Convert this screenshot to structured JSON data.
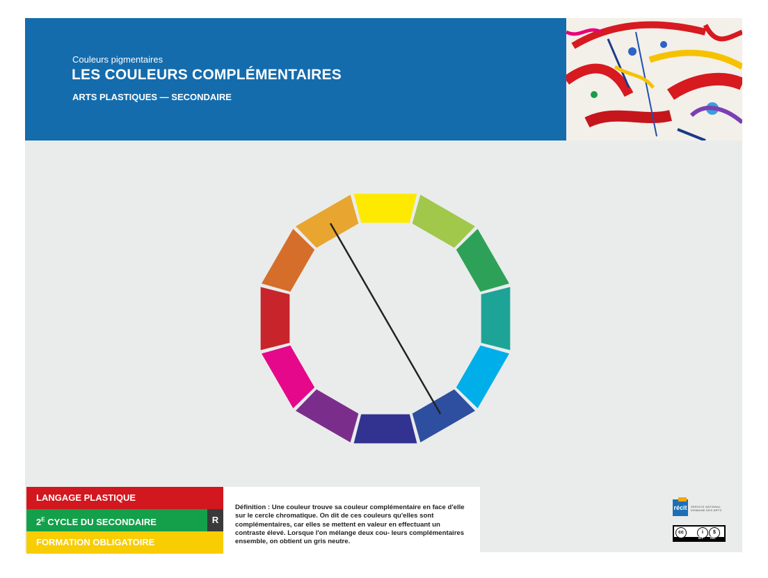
{
  "header": {
    "subtitle": "Couleurs pigmentaires",
    "title": "LES COULEURS COMPLÉMENTAIRES",
    "discipline": "ARTS PLASTIQUES — SECONDAIRE",
    "background": "#146cad"
  },
  "color_wheel": {
    "segments": [
      "#fdea00",
      "#a1c74b",
      "#2ea158",
      "#1da497",
      "#00aeea",
      "#2e4f9f",
      "#323290",
      "#7b2d8c",
      "#e5088a",
      "#c8242c",
      "#d66e2b",
      "#e8a52f"
    ],
    "connected_pair": [
      "#e8a52f",
      "#2e4f9f"
    ],
    "connector_color": "#222222"
  },
  "tags": {
    "language": "LANGAGE PLASTIQUE",
    "cycle_prefix": "2",
    "cycle_suffix": "E",
    "cycle_rest": " CYCLE DU SECONDAIRE",
    "cycle_badge": "R",
    "formation": "FORMATION OBLIGATOIRE"
  },
  "definition": {
    "text": "Définition : Une couleur trouve sa couleur complémentaire en face d'elle sur le cercle chromatique. On dit de ces couleurs qu'elles sont complémentaires, car elles se mettent en valeur en effectuant un contraste élevé. Lorsque l'on mélange deux cou- leurs complémentaires ensemble, on obtient un gris neutre."
  },
  "logos": {
    "recit_mark": "récit",
    "recit_line1": "SERVICE NATIONAL",
    "recit_line2": "DOMAINE DES ARTS",
    "cc_icon": "cc-icon",
    "cc_by": "BY",
    "cc_nc": "NC"
  }
}
